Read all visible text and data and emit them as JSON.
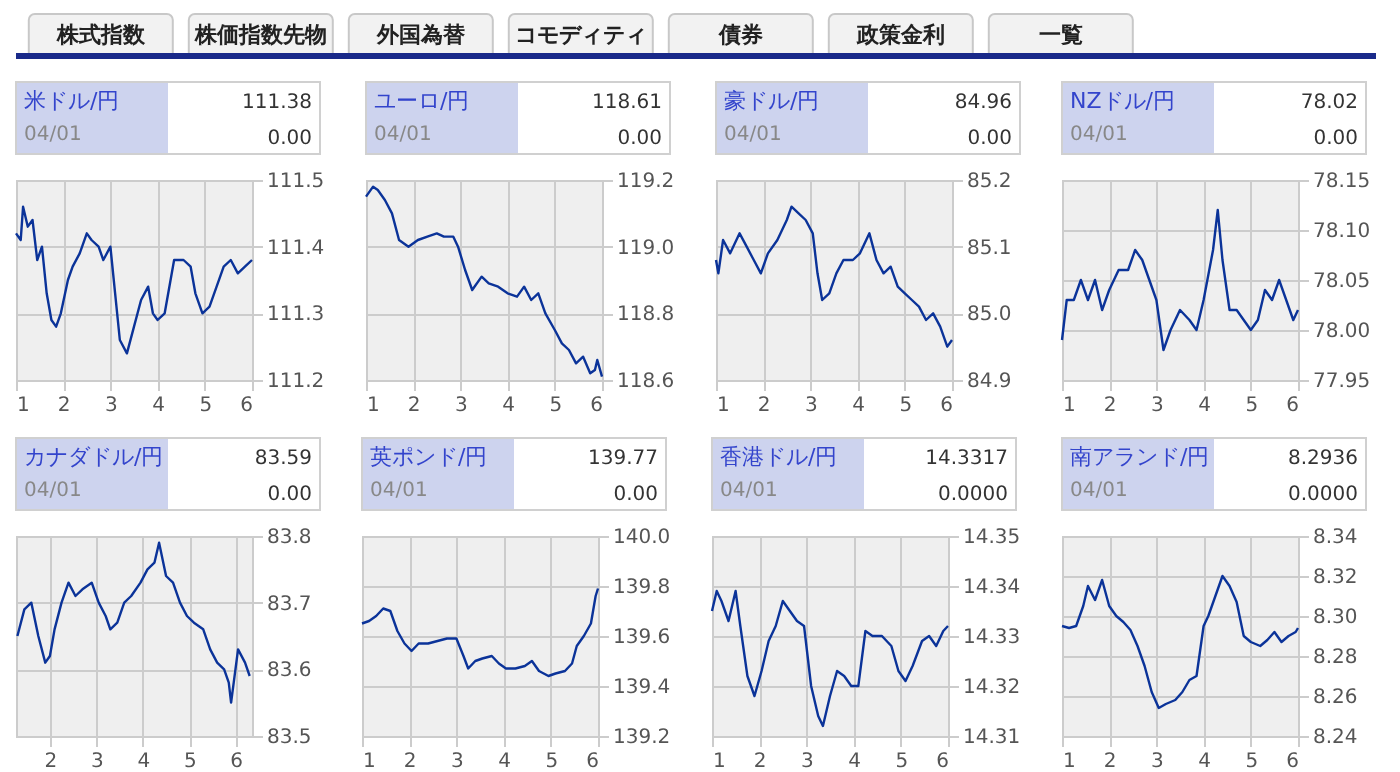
{
  "chart_data": [
    {
      "type": "other",
      "annotations": [
        "株式指数",
        "株価指数先物",
        "外国為替",
        "コモディティ",
        "債券",
        "政策金利",
        "一覧"
      ]
    },
    {
      "type": "line",
      "title": "米ドル/円",
      "annotations": [
        "111.38",
        "04/01",
        "0.00"
      ],
      "grid": true,
      "xlim": [
        1,
        6
      ],
      "xticks": [
        1,
        2,
        3,
        4,
        5,
        6
      ],
      "ylim": [
        111.2,
        111.5
      ],
      "yticks": [
        111.2,
        111.3,
        111.4,
        111.5
      ],
      "x": [
        1.0,
        1.1,
        1.15,
        1.25,
        1.35,
        1.45,
        1.55,
        1.65,
        1.75,
        1.85,
        1.95,
        2.1,
        2.2,
        2.35,
        2.5,
        2.6,
        2.75,
        2.85,
        3.0,
        3.1,
        3.2,
        3.35,
        3.5,
        3.65,
        3.8,
        3.9,
        4.0,
        4.15,
        4.35,
        4.55,
        4.7,
        4.8,
        4.95,
        5.1,
        5.25,
        5.4,
        5.55,
        5.7,
        5.85,
        6.0
      ],
      "series": [
        {
          "color": "#0b3399",
          "values": [
            111.42,
            111.41,
            111.46,
            111.43,
            111.44,
            111.38,
            111.4,
            111.33,
            111.29,
            111.28,
            111.3,
            111.35,
            111.37,
            111.39,
            111.42,
            111.41,
            111.4,
            111.38,
            111.4,
            111.33,
            111.26,
            111.24,
            111.28,
            111.32,
            111.34,
            111.3,
            111.29,
            111.3,
            111.38,
            111.38,
            111.37,
            111.33,
            111.3,
            111.31,
            111.34,
            111.37,
            111.38,
            111.36,
            111.37,
            111.38
          ]
        }
      ]
    },
    {
      "type": "line",
      "title": "ユーロ/円",
      "annotations": [
        "118.61",
        "04/01",
        "0.00"
      ],
      "grid": true,
      "xlim": [
        1,
        6
      ],
      "xticks": [
        1,
        2,
        3,
        4,
        5,
        6
      ],
      "ylim": [
        118.6,
        119.2
      ],
      "yticks": [
        118.6,
        118.8,
        {
          "value": 119,
          "label": "119.0"
        },
        119.2
      ],
      "x": [
        1.0,
        1.15,
        1.25,
        1.4,
        1.55,
        1.7,
        1.9,
        2.1,
        2.3,
        2.5,
        2.65,
        2.85,
        2.95,
        3.1,
        3.25,
        3.45,
        3.6,
        3.8,
        4.0,
        4.2,
        4.35,
        4.5,
        4.65,
        4.8,
        5.0,
        5.15,
        5.3,
        5.45,
        5.6,
        5.75,
        5.85,
        5.9,
        6.0
      ],
      "series": [
        {
          "color": "#0b3399",
          "values": [
            119.15,
            119.18,
            119.17,
            119.14,
            119.1,
            119.02,
            119.0,
            119.02,
            119.03,
            119.04,
            119.03,
            119.03,
            119.0,
            118.93,
            118.87,
            118.91,
            118.89,
            118.88,
            118.86,
            118.85,
            118.88,
            118.84,
            118.86,
            118.8,
            118.75,
            118.71,
            118.69,
            118.65,
            118.67,
            118.62,
            118.63,
            118.66,
            118.61
          ]
        }
      ]
    },
    {
      "type": "line",
      "title": "豪ドル/円",
      "annotations": [
        "84.96",
        "04/01",
        "0.00"
      ],
      "grid": true,
      "xlim": [
        1,
        6
      ],
      "xticks": [
        1,
        2,
        3,
        4,
        5,
        6
      ],
      "ylim": [
        84.9,
        85.2
      ],
      "yticks": [
        84.9,
        {
          "value": 85,
          "label": "85.0"
        },
        85.1,
        85.2
      ],
      "x": [
        1.0,
        1.05,
        1.15,
        1.3,
        1.5,
        1.65,
        1.8,
        1.95,
        2.1,
        2.3,
        2.5,
        2.6,
        2.75,
        2.9,
        3.05,
        3.15,
        3.25,
        3.4,
        3.55,
        3.7,
        3.9,
        4.05,
        4.25,
        4.4,
        4.55,
        4.7,
        4.85,
        5.0,
        5.15,
        5.3,
        5.45,
        5.6,
        5.75,
        5.9,
        6.0
      ],
      "series": [
        {
          "color": "#0b3399",
          "values": [
            85.08,
            85.06,
            85.11,
            85.09,
            85.12,
            85.1,
            85.08,
            85.06,
            85.09,
            85.11,
            85.14,
            85.16,
            85.15,
            85.14,
            85.12,
            85.06,
            85.02,
            85.03,
            85.06,
            85.08,
            85.08,
            85.09,
            85.12,
            85.08,
            85.06,
            85.07,
            85.04,
            85.03,
            85.02,
            85.01,
            84.99,
            85.0,
            84.98,
            84.95,
            84.96
          ]
        }
      ]
    },
    {
      "type": "line",
      "title": "NZドル/円",
      "annotations": [
        "78.02",
        "04/01",
        "0.00"
      ],
      "grid": true,
      "xlim": [
        1,
        6
      ],
      "xticks": [
        1,
        2,
        3,
        4,
        5,
        6
      ],
      "ylim": [
        77.95,
        78.15
      ],
      "yticks": [
        77.95,
        {
          "value": 78,
          "label": "78.00"
        },
        78.05,
        {
          "value": 78.1,
          "label": "78.10"
        },
        78.15
      ],
      "x": [
        1.0,
        1.1,
        1.25,
        1.4,
        1.55,
        1.7,
        1.85,
        2.0,
        2.2,
        2.4,
        2.55,
        2.7,
        2.85,
        3.0,
        3.15,
        3.3,
        3.5,
        3.7,
        3.85,
        4.0,
        4.2,
        4.3,
        4.4,
        4.55,
        4.7,
        4.85,
        5.0,
        5.15,
        5.3,
        5.45,
        5.6,
        5.75,
        5.9,
        6.0
      ],
      "series": [
        {
          "color": "#0b3399",
          "values": [
            77.99,
            78.03,
            78.03,
            78.05,
            78.03,
            78.05,
            78.02,
            78.04,
            78.06,
            78.06,
            78.08,
            78.07,
            78.05,
            78.03,
            77.98,
            78.0,
            78.02,
            78.01,
            78.0,
            78.03,
            78.08,
            78.12,
            78.07,
            78.02,
            78.02,
            78.01,
            78.0,
            78.01,
            78.04,
            78.03,
            78.05,
            78.03,
            78.01,
            78.02
          ]
        }
      ]
    },
    {
      "type": "line",
      "title": "カナダドル/円",
      "annotations": [
        "83.59",
        "04/01",
        "0.00"
      ],
      "grid": true,
      "xlim": [
        1.27,
        6.35
      ],
      "xticks": [
        2,
        3,
        4,
        5,
        6
      ],
      "ylim": [
        83.5,
        83.8
      ],
      "yticks": [
        83.5,
        83.6,
        83.7,
        83.8
      ],
      "x": [
        1.3,
        1.45,
        1.6,
        1.75,
        1.9,
        2.0,
        2.1,
        2.25,
        2.4,
        2.55,
        2.7,
        2.9,
        3.05,
        3.2,
        3.3,
        3.45,
        3.6,
        3.75,
        3.95,
        4.1,
        4.25,
        4.35,
        4.5,
        4.65,
        4.8,
        4.95,
        5.1,
        5.3,
        5.45,
        5.6,
        5.75,
        5.85,
        5.9,
        6.05,
        6.2,
        6.3
      ],
      "series": [
        {
          "color": "#0b3399",
          "values": [
            83.65,
            83.69,
            83.7,
            83.65,
            83.61,
            83.62,
            83.66,
            83.7,
            83.73,
            83.71,
            83.72,
            83.73,
            83.7,
            83.68,
            83.66,
            83.67,
            83.7,
            83.71,
            83.73,
            83.75,
            83.76,
            83.79,
            83.74,
            83.73,
            83.7,
            83.68,
            83.67,
            83.66,
            83.63,
            83.61,
            83.6,
            83.58,
            83.55,
            83.63,
            83.61,
            83.59
          ]
        }
      ]
    },
    {
      "type": "line",
      "title": "英ポンド/円",
      "annotations": [
        "139.77",
        "04/01",
        "0.00"
      ],
      "grid": true,
      "xlim": [
        1,
        6
      ],
      "xticks": [
        1,
        2,
        3,
        4,
        5,
        6
      ],
      "ylim": [
        139.2,
        140.0
      ],
      "yticks": [
        139.2,
        139.4,
        139.6,
        139.8,
        {
          "value": 140,
          "label": "140.0"
        }
      ],
      "x": [
        1.0,
        1.15,
        1.3,
        1.45,
        1.6,
        1.75,
        1.9,
        2.05,
        2.2,
        2.4,
        2.6,
        2.8,
        3.0,
        3.15,
        3.25,
        3.4,
        3.55,
        3.75,
        3.9,
        4.05,
        4.25,
        4.45,
        4.6,
        4.75,
        4.95,
        5.1,
        5.3,
        5.45,
        5.55,
        5.7,
        5.85,
        5.95,
        6.0
      ],
      "series": [
        {
          "color": "#0b3399",
          "values": [
            139.65,
            139.66,
            139.68,
            139.71,
            139.7,
            139.62,
            139.57,
            139.54,
            139.57,
            139.57,
            139.58,
            139.59,
            139.59,
            139.52,
            139.47,
            139.5,
            139.51,
            139.52,
            139.49,
            139.47,
            139.47,
            139.48,
            139.5,
            139.46,
            139.44,
            139.45,
            139.46,
            139.49,
            139.56,
            139.6,
            139.65,
            139.76,
            139.79
          ]
        }
      ]
    },
    {
      "type": "line",
      "title": "香港ドル/円",
      "annotations": [
        "14.3317",
        "04/01",
        "0.0000"
      ],
      "grid": true,
      "xlim": [
        1,
        6
      ],
      "xticks": [
        1,
        2,
        3,
        4,
        5,
        6
      ],
      "ylim": [
        14.31,
        14.35
      ],
      "yticks": [
        14.31,
        14.32,
        14.33,
        14.34,
        14.35
      ],
      "x": [
        1.0,
        1.1,
        1.2,
        1.35,
        1.5,
        1.6,
        1.75,
        1.9,
        2.05,
        2.2,
        2.35,
        2.5,
        2.65,
        2.8,
        2.95,
        3.1,
        3.25,
        3.35,
        3.5,
        3.65,
        3.8,
        3.95,
        4.1,
        4.25,
        4.4,
        4.6,
        4.8,
        4.95,
        5.1,
        5.25,
        5.45,
        5.6,
        5.75,
        5.9,
        6.0
      ],
      "series": [
        {
          "color": "#0b3399",
          "values": [
            14.335,
            14.339,
            14.337,
            14.333,
            14.339,
            14.332,
            14.322,
            14.318,
            14.323,
            14.329,
            14.332,
            14.337,
            14.335,
            14.333,
            14.332,
            14.32,
            14.314,
            14.312,
            14.318,
            14.323,
            14.322,
            14.32,
            14.32,
            14.331,
            14.33,
            14.33,
            14.328,
            14.323,
            14.321,
            14.324,
            14.329,
            14.33,
            14.328,
            14.331,
            14.332
          ]
        }
      ]
    },
    {
      "type": "line",
      "title": "南アランド/円",
      "annotations": [
        "8.2936",
        "04/01",
        "0.0000"
      ],
      "grid": true,
      "xlim": [
        1,
        6
      ],
      "xticks": [
        1,
        2,
        3,
        4,
        5,
        6
      ],
      "ylim": [
        8.24,
        8.34
      ],
      "yticks": [
        8.24,
        8.26,
        8.28,
        {
          "value": 8.3,
          "label": "8.30"
        },
        8.32,
        8.34
      ],
      "x": [
        1.0,
        1.15,
        1.3,
        1.45,
        1.55,
        1.7,
        1.85,
        2.0,
        2.15,
        2.3,
        2.45,
        2.6,
        2.75,
        2.9,
        3.05,
        3.2,
        3.4,
        3.55,
        3.7,
        3.85,
        4.0,
        4.1,
        4.25,
        4.4,
        4.55,
        4.7,
        4.85,
        5.0,
        5.2,
        5.35,
        5.5,
        5.65,
        5.8,
        5.95,
        6.0
      ],
      "series": [
        {
          "color": "#0b3399",
          "values": [
            8.295,
            8.294,
            8.295,
            8.305,
            8.315,
            8.308,
            8.318,
            8.305,
            8.3,
            8.297,
            8.293,
            8.285,
            8.275,
            8.262,
            8.254,
            8.256,
            8.258,
            8.262,
            8.268,
            8.27,
            8.295,
            8.3,
            8.31,
            8.32,
            8.315,
            8.307,
            8.29,
            8.287,
            8.285,
            8.288,
            8.292,
            8.287,
            8.29,
            8.292,
            8.294
          ]
        }
      ]
    }
  ]
}
